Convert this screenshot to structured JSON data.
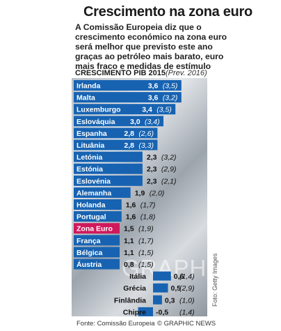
{
  "title": "Crescimento na zona euro",
  "intro_lines": [
    "A Comissão Europeia diz que o",
    "crescimento económico na zona euro",
    "será melhor que previsto este ano",
    "graças ao petróleo mais barato, euro",
    "mais fraco e medidas de estímulo"
  ],
  "watermark": "GRAPHIC NEWS",
  "photo_credit": "Foto: Getty Images",
  "source": "Fonte: Comissão Europeia",
  "credit": "© GRAPHIC NEWS",
  "colors": {
    "bar": "#1763b2",
    "highlight": "#d0185c",
    "text_dark": "#111111",
    "text_light": "#ffffff"
  },
  "chart_data": {
    "type": "bar",
    "orientation": "horizontal",
    "xlabel": "CRESCIMENTO PIB 2015",
    "forecast_label": "(Prev. 2016)",
    "highlight": "Zona Euro",
    "rows": [
      {
        "country": "Irlanda",
        "label": "3,6",
        "prev": "(3,5)",
        "value": 3.6
      },
      {
        "country": "Malta",
        "label": "3,6",
        "prev": "(3,2)",
        "value": 3.6
      },
      {
        "country": "Luxemburgo",
        "label": "3,4",
        "prev": "(3,5)",
        "value": 3.4
      },
      {
        "country": "Eslováquia",
        "label": "3,0",
        "prev": "(3,4)",
        "value": 3.0
      },
      {
        "country": "Espanha",
        "label": "2,8",
        "prev": "(2,6)",
        "value": 2.8
      },
      {
        "country": "Lituânia",
        "label": "2,8",
        "prev": "(3,3)",
        "value": 2.8
      },
      {
        "country": "Letónia",
        "label": "2,3",
        "prev": "(3,2)",
        "value": 2.3
      },
      {
        "country": "Estónia",
        "label": "2,3",
        "prev": "(2,9)",
        "value": 2.3
      },
      {
        "country": "Eslovénia",
        "label": "2,3",
        "prev": "(2,1)",
        "value": 2.3
      },
      {
        "country": "Alemanha",
        "label": "1,9",
        "prev": "(2,0)",
        "value": 1.9
      },
      {
        "country": "Holanda",
        "label": "1,6",
        "prev": "(1,7)",
        "value": 1.6
      },
      {
        "country": "Portugal",
        "label": "1,6",
        "prev": "(1,8)",
        "value": 1.6
      },
      {
        "country": "Zona Euro",
        "label": "1,5",
        "prev": "(1,9)",
        "value": 1.5
      },
      {
        "country": "França",
        "label": "1,1",
        "prev": "(1,7)",
        "value": 1.1
      },
      {
        "country": "Bélgica",
        "label": "1,1",
        "prev": "(1,5)",
        "value": 1.1
      },
      {
        "country": "Áustria",
        "label": "0,8",
        "prev": "(1,5)",
        "value": 0.8
      },
      {
        "country": "Itália",
        "label": "0,6",
        "prev": "(1,4)",
        "value": 0.6
      },
      {
        "country": "Grécia",
        "label": "0,5",
        "prev": "(2,9)",
        "value": 0.5
      },
      {
        "country": "Finlândia",
        "label": "0,3",
        "prev": "(1,0)",
        "value": 0.3
      },
      {
        "country": "Chipre",
        "label": "-0,5",
        "prev": "(1,4)",
        "value": -0.5
      }
    ]
  }
}
